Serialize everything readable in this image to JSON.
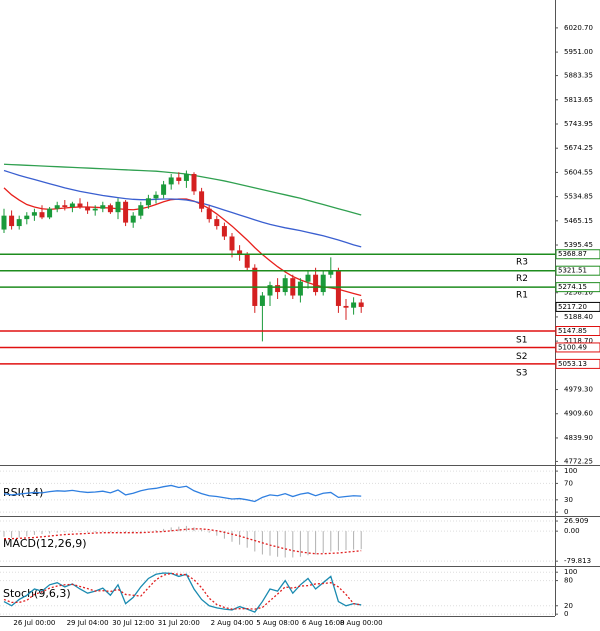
{
  "chart_data": [
    {
      "type": "candlestick",
      "categories": [
        null,
        null,
        null,
        null,
        "26 Jul 00:00",
        null,
        null,
        null,
        null,
        null,
        null,
        "29 Jul 04:00",
        null,
        null,
        null,
        null,
        null,
        "30 Jul 12:00",
        null,
        null,
        null,
        null,
        null,
        "31 Jul 20:00",
        null,
        null,
        null,
        null,
        null,
        null,
        "2 Aug 04:00",
        null,
        null,
        null,
        null,
        null,
        "5 Aug 08:00",
        null,
        null,
        null,
        null,
        null,
        "6 Aug 16:00",
        null,
        null,
        null,
        null,
        "8 Aug 00:00"
      ],
      "open": [
        5440,
        5480,
        5450,
        5470,
        5480,
        5490,
        5475,
        5500,
        5510,
        5505,
        5515,
        5505,
        5495,
        5500,
        5510,
        5490,
        5520,
        5460,
        5480,
        5510,
        5530,
        5540,
        5570,
        5590,
        5580,
        5600,
        5550,
        5500,
        5470,
        5450,
        5420,
        5380,
        5370,
        5330,
        5220,
        5250,
        5280,
        5260,
        5300,
        5250,
        5290,
        5310,
        5260,
        5310,
        5320,
        5220,
        5215,
        5230
      ],
      "high": [
        5500,
        5495,
        5480,
        5490,
        5500,
        5510,
        5505,
        5520,
        5525,
        5520,
        5530,
        5520,
        5510,
        5520,
        5515,
        5530,
        5525,
        5490,
        5520,
        5540,
        5550,
        5580,
        5600,
        5605,
        5610,
        5605,
        5560,
        5510,
        5480,
        5460,
        5430,
        5395,
        5375,
        5340,
        5260,
        5290,
        5300,
        5310,
        5310,
        5300,
        5320,
        5330,
        5320,
        5360,
        5330,
        5240,
        5245,
        5240
      ],
      "low": [
        5430,
        5440,
        5440,
        5455,
        5465,
        5470,
        5470,
        5490,
        5495,
        5490,
        5500,
        5485,
        5480,
        5490,
        5485,
        5470,
        5450,
        5445,
        5470,
        5500,
        5515,
        5530,
        5555,
        5570,
        5560,
        5540,
        5490,
        5460,
        5440,
        5410,
        5360,
        5350,
        5320,
        5200,
        5118,
        5220,
        5240,
        5250,
        5240,
        5230,
        5270,
        5250,
        5250,
        5300,
        5200,
        5180,
        5195,
        5200
      ],
      "close": [
        5480,
        5450,
        5470,
        5480,
        5490,
        5475,
        5500,
        5510,
        5505,
        5515,
        5505,
        5495,
        5500,
        5510,
        5490,
        5520,
        5460,
        5480,
        5510,
        5530,
        5540,
        5570,
        5590,
        5580,
        5600,
        5550,
        5500,
        5470,
        5450,
        5420,
        5380,
        5370,
        5330,
        5220,
        5250,
        5280,
        5260,
        5300,
        5250,
        5290,
        5310,
        5260,
        5310,
        5320,
        5220,
        5215,
        5230,
        5217.2
      ],
      "up_color": "#1a9a3a",
      "down_color": "#d42020",
      "series": [
        {
          "color": "#e8201c",
          "values": [
            5560,
            5540,
            5525,
            5512,
            5505,
            5500,
            5498,
            5500,
            5502,
            5504,
            5505,
            5505,
            5504,
            5503,
            5502,
            5500,
            5498,
            5497,
            5500,
            5505,
            5512,
            5520,
            5526,
            5528,
            5528,
            5522,
            5512,
            5500,
            5485,
            5468,
            5450,
            5430,
            5410,
            5388,
            5368,
            5350,
            5333,
            5318,
            5305,
            5295,
            5287,
            5280,
            5275,
            5272,
            5268,
            5262,
            5256,
            5250
          ]
        },
        {
          "color": "#3a5fd0",
          "values": [
            5610,
            5603,
            5596,
            5590,
            5584,
            5578,
            5572,
            5566,
            5560,
            5555,
            5550,
            5546,
            5542,
            5538,
            5535,
            5532,
            5529,
            5527,
            5526,
            5526,
            5527,
            5528,
            5528,
            5527,
            5525,
            5521,
            5516,
            5510,
            5503,
            5496,
            5489,
            5482,
            5475,
            5468,
            5461,
            5455,
            5450,
            5445,
            5441,
            5437,
            5432,
            5427,
            5422,
            5416,
            5410,
            5403,
            5396,
            5390
          ]
        },
        {
          "color": "#30a050",
          "values": [
            5628,
            5627,
            5626,
            5625,
            5624,
            5623,
            5622,
            5621,
            5620,
            5619,
            5618,
            5617,
            5616,
            5615,
            5614,
            5613,
            5612,
            5611,
            5610,
            5609,
            5608,
            5606,
            5604,
            5602,
            5600,
            5596,
            5592,
            5588,
            5584,
            5580,
            5575,
            5570,
            5565,
            5560,
            5555,
            5550,
            5545,
            5540,
            5535,
            5530,
            5524,
            5518,
            5512,
            5506,
            5500,
            5494,
            5488,
            5482
          ]
        }
      ],
      "levels": [
        {
          "name": "R3",
          "value": 5368.87,
          "color": "#1e8c1e"
        },
        {
          "name": "R2",
          "value": 5321.51,
          "color": "#1e8c1e"
        },
        {
          "name": "R1",
          "value": 5274.15,
          "color": "#1e8c1e"
        },
        {
          "name": "S1",
          "value": 5147.85,
          "color": "#e01010"
        },
        {
          "name": "S2",
          "value": 5100.49,
          "color": "#e01010"
        },
        {
          "name": "S3",
          "value": 5053.13,
          "color": "#e01010"
        }
      ],
      "last_price": {
        "value": 5217.2,
        "label": "5217.20"
      },
      "ylim": [
        4762,
        6101
      ],
      "yticks": [
        {
          "value": 6020.7,
          "label": "6020.70"
        },
        {
          "value": 5951,
          "label": "5951.00"
        },
        5883.35,
        5813.65,
        5743.95,
        5674.25,
        5604.55,
        5534.85,
        5465.15,
        5395.45,
        {
          "value": 5258.1,
          "label": "5258.10"
        },
        {
          "value": 5188.4,
          "label": "5188.40"
        },
        {
          "value": 5118.7,
          "label": "5118.70"
        },
        {
          "value": 4979.3,
          "label": "4979.30"
        },
        {
          "value": 4909.6,
          "label": "4909.60"
        },
        {
          "value": 4839.9,
          "label": "4839.90"
        },
        4772.25
      ]
    },
    {
      "type": "line",
      "title": "RSI(14)",
      "ylim": [
        -7,
        110
      ],
      "yticks": [
        100,
        70,
        30,
        0
      ],
      "series": [
        {
          "color": "#2f7fe0",
          "values": [
            45,
            42,
            44,
            46,
            48,
            47,
            50,
            52,
            51,
            53,
            50,
            48,
            49,
            51,
            47,
            54,
            42,
            46,
            52,
            56,
            58,
            62,
            65,
            60,
            63,
            52,
            45,
            40,
            38,
            35,
            32,
            33,
            30,
            26,
            36,
            42,
            40,
            45,
            38,
            44,
            47,
            40,
            46,
            48,
            36,
            38,
            40,
            39
          ]
        }
      ]
    },
    {
      "type": "macd",
      "title": "MACD(12,26,9)",
      "ylim": [
        -90,
        35
      ],
      "yticks": [
        {
          "value": 26.909,
          "label": "26.909"
        },
        {
          "value": 0,
          "label": "0.00"
        },
        {
          "value": -79.813,
          "label": "-79.813"
        }
      ],
      "histogram": {
        "color": "#b0b0b0",
        "values": [
          -15,
          -18,
          -17,
          -14,
          -10,
          -8,
          -6,
          -4,
          -3,
          -2,
          -2,
          -3,
          -3,
          -2,
          -3,
          -1,
          -5,
          -5,
          -3,
          0,
          3,
          6,
          10,
          12,
          14,
          10,
          4,
          -4,
          -12,
          -20,
          -28,
          -36,
          -44,
          -54,
          -62,
          -65,
          -68,
          -70,
          -70,
          -68,
          -64,
          -62,
          -58,
          -54,
          -52,
          -50,
          -49,
          -48
        ]
      },
      "signal": {
        "color": "#e02020",
        "values": [
          -20,
          -20,
          -19,
          -18,
          -17,
          -15,
          -13,
          -11,
          -9,
          -8,
          -7,
          -6,
          -5,
          -4,
          -4,
          -4,
          -4,
          -4,
          -4,
          -3,
          -2,
          -1,
          1,
          3,
          5,
          6,
          6,
          4,
          1,
          -3,
          -8,
          -13,
          -19,
          -25,
          -31,
          -37,
          -42,
          -47,
          -52,
          -55,
          -58,
          -60,
          -60,
          -59,
          -58,
          -56,
          -54,
          -52
        ]
      }
    },
    {
      "type": "stoch",
      "title": "Stoch(9,6,3)",
      "ylim": [
        -2,
        110
      ],
      "yticks": [
        100,
        80,
        20,
        0
      ],
      "series": [
        {
          "color": "#1a8ab0",
          "values": [
            30,
            20,
            35,
            45,
            60,
            55,
            70,
            75,
            65,
            72,
            60,
            50,
            55,
            62,
            45,
            70,
            25,
            40,
            65,
            85,
            95,
            98,
            97,
            90,
            95,
            60,
            35,
            20,
            15,
            12,
            10,
            18,
            12,
            5,
            30,
            60,
            55,
            80,
            50,
            70,
            85,
            60,
            75,
            90,
            30,
            20,
            25,
            22
          ]
        },
        {
          "color": "#e02020",
          "dashed": true,
          "values": [
            35,
            28,
            28,
            33,
            47,
            53,
            62,
            67,
            70,
            71,
            66,
            61,
            55,
            56,
            54,
            59,
            47,
            45,
            43,
            63,
            82,
            93,
            97,
            95,
            94,
            82,
            63,
            38,
            23,
            16,
            12,
            13,
            13,
            12,
            16,
            32,
            48,
            65,
            62,
            67,
            68,
            72,
            73,
            75,
            65,
            47,
            25,
            22
          ]
        }
      ]
    }
  ]
}
